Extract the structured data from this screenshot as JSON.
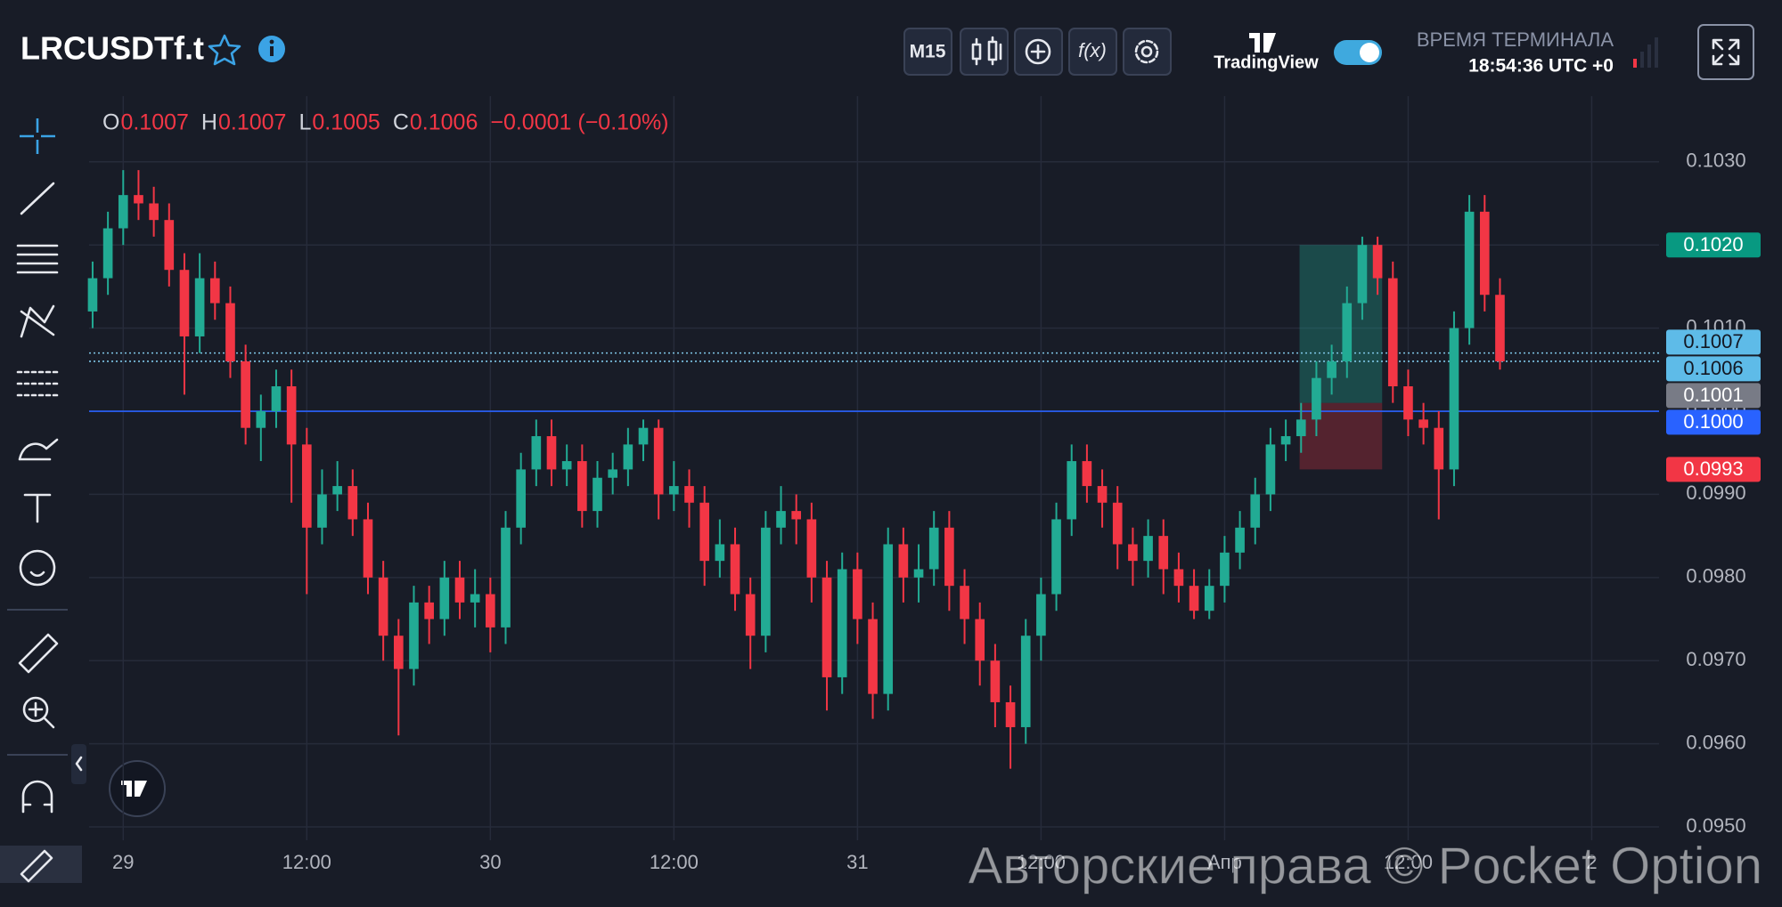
{
  "header": {
    "symbol": "LRCUSDTf.t",
    "timeframe": "M15",
    "indicators": "f(x)",
    "brand": "TradingView",
    "clock_title": "ВРЕМЯ ТЕРМИНАЛА",
    "clock": "18:54:36 UTC +0"
  },
  "ohlc": {
    "items": [
      {
        "label": "O",
        "value": "0.1007"
      },
      {
        "label": "H",
        "value": "0.1007"
      },
      {
        "label": "L",
        "value": "0.1005"
      },
      {
        "label": "C",
        "value": "0.1006"
      }
    ],
    "change": "−0.0001 (−0.10%)"
  },
  "watermark": "Авторские права © Pocket Option",
  "chart_data": {
    "type": "candlestick",
    "up_color": "#22ab94",
    "down_color": "#f23645",
    "grid": true,
    "xlim": [
      -2.23,
      100.4
    ],
    "xticks": [
      {
        "value": 0,
        "label": "29"
      },
      {
        "value": 12,
        "label": "12:00"
      },
      {
        "value": 24,
        "label": "30"
      },
      {
        "value": 36,
        "label": "12:00"
      },
      {
        "value": 48,
        "label": "31"
      },
      {
        "value": 60,
        "label": "12:00"
      },
      {
        "value": 72,
        "label": "Апр"
      },
      {
        "value": 84,
        "label": "12:00"
      },
      {
        "value": 96,
        "label": "2"
      }
    ],
    "ylim": [
      0.09484,
      0.10379
    ],
    "yticks": [
      {
        "value": 0.095,
        "label": "0.0950"
      },
      {
        "value": 0.096,
        "label": "0.0960"
      },
      {
        "value": 0.097,
        "label": "0.0970"
      },
      {
        "value": 0.098,
        "label": "0.0980"
      },
      {
        "value": 0.099,
        "label": "0.0990"
      },
      {
        "value": 0.1,
        "label": "0.1000"
      },
      {
        "value": 0.101,
        "label": "0.1010"
      },
      {
        "value": 0.102,
        "label": "0.1020"
      },
      {
        "value": 0.103,
        "label": "0.1030"
      }
    ],
    "x": [
      -2,
      -1,
      0,
      1,
      2,
      3,
      4,
      5,
      6,
      7,
      8,
      9,
      10,
      11,
      12,
      13,
      14,
      15,
      16,
      17,
      18,
      19,
      20,
      21,
      22,
      23,
      24,
      25,
      26,
      27,
      28,
      29,
      30,
      31,
      32,
      33,
      34,
      35,
      36,
      37,
      38,
      39,
      40,
      41,
      42,
      43,
      44,
      45,
      46,
      47,
      48,
      49,
      50,
      51,
      52,
      53,
      54,
      55,
      56,
      57,
      58,
      59,
      60,
      61,
      62,
      63,
      64,
      65,
      66,
      67,
      68,
      69,
      70,
      71,
      72,
      73,
      74,
      75,
      76,
      77,
      78,
      79,
      80,
      81,
      82,
      83,
      84,
      85,
      86,
      87,
      88,
      89,
      90
    ],
    "open": [
      0.1012,
      0.1016,
      0.1022,
      0.1026,
      0.1025,
      0.1023,
      0.1017,
      0.1009,
      0.1016,
      0.1013,
      0.1006,
      0.0998,
      0.1,
      0.1003,
      0.0996,
      0.0986,
      0.099,
      0.0991,
      0.0987,
      0.098,
      0.0973,
      0.0969,
      0.0977,
      0.0975,
      0.098,
      0.0977,
      0.0978,
      0.0974,
      0.0986,
      0.0993,
      0.0997,
      0.0993,
      0.0994,
      0.0988,
      0.0992,
      0.0993,
      0.0996,
      0.0998,
      0.099,
      0.0991,
      0.0989,
      0.0982,
      0.0984,
      0.0978,
      0.0973,
      0.0986,
      0.0988,
      0.0987,
      0.098,
      0.0968,
      0.0981,
      0.0975,
      0.0966,
      0.0984,
      0.098,
      0.0981,
      0.0986,
      0.0979,
      0.0975,
      0.097,
      0.0965,
      0.0962,
      0.0973,
      0.0978,
      0.0987,
      0.0994,
      0.0991,
      0.0989,
      0.0984,
      0.0982,
      0.0985,
      0.0981,
      0.0979,
      0.0976,
      0.0979,
      0.0983,
      0.0986,
      0.099,
      0.0996,
      0.0997,
      0.0999,
      0.1004,
      0.1006,
      0.1013,
      0.102,
      0.1016,
      0.1003,
      0.0999,
      0.0998,
      0.0993,
      0.101,
      0.1024,
      0.1014
    ],
    "high": [
      0.1018,
      0.1024,
      0.1029,
      0.1029,
      0.1027,
      0.1025,
      0.1019,
      0.1019,
      0.1018,
      0.1015,
      0.1008,
      0.1002,
      0.1005,
      0.1005,
      0.0998,
      0.0993,
      0.0994,
      0.0993,
      0.0989,
      0.0982,
      0.0975,
      0.0979,
      0.0979,
      0.0982,
      0.0982,
      0.0981,
      0.098,
      0.0988,
      0.0995,
      0.0999,
      0.0999,
      0.0996,
      0.0996,
      0.0994,
      0.0995,
      0.0998,
      0.0999,
      0.0999,
      0.0994,
      0.0993,
      0.0991,
      0.0987,
      0.0986,
      0.098,
      0.0988,
      0.0991,
      0.099,
      0.0989,
      0.0982,
      0.0983,
      0.0983,
      0.0977,
      0.0986,
      0.0986,
      0.0984,
      0.0988,
      0.0988,
      0.0981,
      0.0977,
      0.0972,
      0.0967,
      0.0975,
      0.098,
      0.0989,
      0.0996,
      0.0996,
      0.0993,
      0.0991,
      0.0986,
      0.0987,
      0.0987,
      0.0983,
      0.0981,
      0.0981,
      0.0985,
      0.0988,
      0.0992,
      0.0998,
      0.0999,
      0.1001,
      0.1006,
      0.1008,
      0.1015,
      0.1021,
      0.1021,
      0.1018,
      0.1005,
      0.1001,
      0.1,
      0.1012,
      0.1026,
      0.1026,
      0.1016
    ],
    "low": [
      0.101,
      0.1014,
      0.102,
      0.1023,
      0.1021,
      0.1015,
      0.1002,
      0.1007,
      0.1011,
      0.1004,
      0.0996,
      0.0994,
      0.0998,
      0.0989,
      0.0978,
      0.0984,
      0.0988,
      0.0985,
      0.0978,
      0.097,
      0.0961,
      0.0967,
      0.0972,
      0.0973,
      0.0975,
      0.0974,
      0.0971,
      0.0972,
      0.0984,
      0.0991,
      0.0991,
      0.0991,
      0.0986,
      0.0986,
      0.099,
      0.0991,
      0.0994,
      0.0987,
      0.0988,
      0.0986,
      0.0979,
      0.098,
      0.0976,
      0.0969,
      0.0971,
      0.0984,
      0.0984,
      0.0977,
      0.0964,
      0.0966,
      0.0972,
      0.0963,
      0.0964,
      0.0977,
      0.0977,
      0.0979,
      0.0976,
      0.0972,
      0.0967,
      0.0962,
      0.0957,
      0.096,
      0.097,
      0.0976,
      0.0985,
      0.0989,
      0.0986,
      0.0981,
      0.0979,
      0.098,
      0.0978,
      0.0977,
      0.0975,
      0.0975,
      0.0977,
      0.0981,
      0.0984,
      0.0988,
      0.0994,
      0.0995,
      0.0997,
      0.1002,
      0.1004,
      0.1011,
      0.1014,
      0.1001,
      0.0997,
      0.0996,
      0.0987,
      0.0991,
      0.1008,
      0.1012,
      0.1005
    ],
    "close": [
      0.1016,
      0.1022,
      0.1026,
      0.1025,
      0.1023,
      0.1017,
      0.1009,
      0.1016,
      0.1013,
      0.1006,
      0.0998,
      0.1,
      0.1003,
      0.0996,
      0.0986,
      0.099,
      0.0991,
      0.0987,
      0.098,
      0.0973,
      0.0969,
      0.0977,
      0.0975,
      0.098,
      0.0977,
      0.0978,
      0.0974,
      0.0986,
      0.0993,
      0.0997,
      0.0993,
      0.0994,
      0.0988,
      0.0992,
      0.0993,
      0.0996,
      0.0998,
      0.099,
      0.0991,
      0.0989,
      0.0982,
      0.0984,
      0.0978,
      0.0973,
      0.0986,
      0.0988,
      0.0987,
      0.098,
      0.0968,
      0.0981,
      0.0975,
      0.0966,
      0.0984,
      0.098,
      0.0981,
      0.0986,
      0.0979,
      0.0975,
      0.097,
      0.0965,
      0.0962,
      0.0973,
      0.0978,
      0.0987,
      0.0994,
      0.0991,
      0.0989,
      0.0984,
      0.0982,
      0.0985,
      0.0981,
      0.0979,
      0.0976,
      0.0979,
      0.0983,
      0.0986,
      0.099,
      0.0996,
      0.0997,
      0.0999,
      0.1004,
      0.1006,
      0.1013,
      0.102,
      0.1016,
      0.1003,
      0.0999,
      0.0998,
      0.0993,
      0.101,
      0.1024,
      0.1014,
      0.1006
    ],
    "price_tags": [
      {
        "value": 0.102,
        "label": "0.1020",
        "color": "#089981",
        "text_color": "#ffffff"
      },
      {
        "value": 0.1007,
        "label": "0.1007",
        "color": "#5ebbe8",
        "text_color": "#131722",
        "line": "dotted"
      },
      {
        "value": 0.1006,
        "label": "0.1006",
        "color": "#5ebbe8",
        "text_color": "#131722",
        "line": "dotted"
      },
      {
        "value": 0.1001,
        "label": "0.1001",
        "color": "#787b86",
        "text_color": "#ffffff"
      },
      {
        "value": 0.1,
        "label": "0.1000",
        "color": "#2962ff",
        "text_color": "#ffffff",
        "line": "solid"
      },
      {
        "value": 0.0993,
        "label": "0.0993",
        "color": "#f23645",
        "text_color": "#ffffff"
      }
    ],
    "position_x": [
      76.9,
      82.3
    ]
  }
}
